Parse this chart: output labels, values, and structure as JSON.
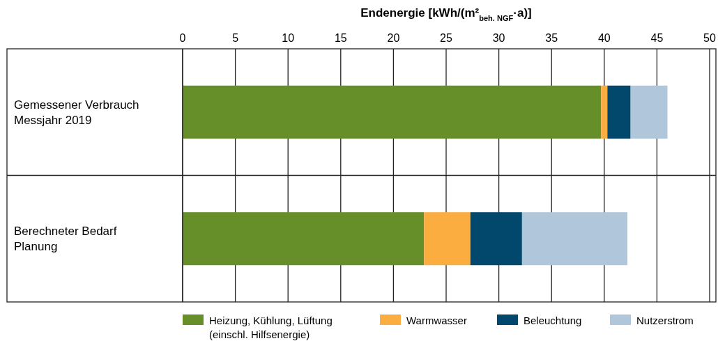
{
  "chart_data": {
    "type": "bar",
    "orientation": "horizontal",
    "stacked": true,
    "xlabel": "Endenergie [kWh/(m²$_{beh. NGF}$·a)]",
    "categories": [
      "Gemessener Verbrauch\nMessjahr 2019",
      "Berechneter Bedarf\nPlanung"
    ],
    "series": [
      {
        "name": "Heizung, Kühlung, Lüftung\n(einschl. Hilfsenergie)",
        "color": "#678f29",
        "values": [
          39.7,
          22.9
        ]
      },
      {
        "name": "Warmwasser",
        "color": "#fbad40",
        "values": [
          0.6,
          4.4
        ]
      },
      {
        "name": "Beleuchtung",
        "color": "#02486c",
        "values": [
          2.2,
          4.9
        ]
      },
      {
        "name": "Nutzerstrom",
        "color": "#b0c6da",
        "values": [
          3.5,
          10.0
        ]
      }
    ],
    "xlim": [
      0,
      50
    ],
    "xticks": [
      0,
      5,
      10,
      15,
      20,
      25,
      30,
      35,
      40,
      45,
      50
    ],
    "grid": "x",
    "legend": "bottom"
  }
}
